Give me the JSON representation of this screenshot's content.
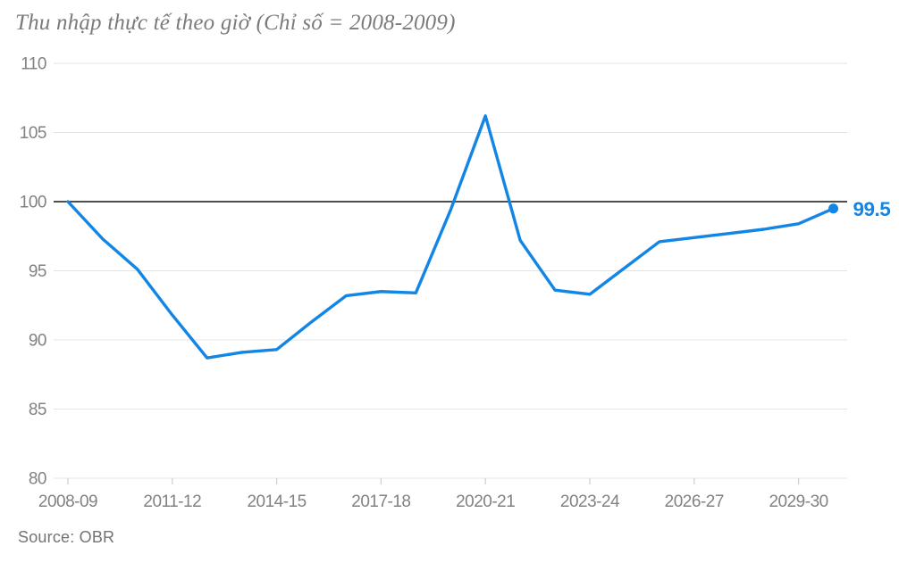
{
  "header": {
    "title": "Thu nhập thực tế theo giờ (Chỉ số = 2008-2009)"
  },
  "footer": {
    "source": "Source: OBR"
  },
  "chart_data": {
    "type": "line",
    "title": "Thu nhập thực tế theo giờ (Chỉ số = 2008-2009)",
    "source": "Source: OBR",
    "x": [
      "2008-09",
      "2009-10",
      "2010-11",
      "2011-12",
      "2012-13",
      "2013-14",
      "2014-15",
      "2015-16",
      "2016-17",
      "2017-18",
      "2018-19",
      "2019-20",
      "2020-21",
      "2021-22",
      "2022-23",
      "2023-24",
      "2024-25",
      "2025-26",
      "2026-27",
      "2027-28",
      "2028-29",
      "2029-30",
      "2030-31"
    ],
    "series": [
      {
        "name": "Thu nhập thực tế theo giờ (Chỉ số = 2008-2009)",
        "values": [
          100.0,
          97.3,
          95.1,
          91.8,
          88.7,
          89.1,
          89.3,
          91.3,
          93.2,
          93.5,
          93.4,
          99.4,
          106.2,
          97.2,
          93.6,
          93.3,
          95.2,
          97.1,
          97.4,
          97.7,
          98.0,
          98.4,
          99.5
        ]
      }
    ],
    "x_tick_labels": [
      "2008-09",
      "2011-12",
      "2014-15",
      "2017-18",
      "2020-21",
      "2023-24",
      "2026-27",
      "2029-30"
    ],
    "x_tick_step": 3,
    "y_ticks": [
      80,
      85,
      90,
      95,
      100,
      105,
      110
    ],
    "ylim": [
      80,
      110
    ],
    "baseline_value": 100,
    "end_label": "99.5",
    "grid": "horizontal",
    "legend": "none",
    "colors": {
      "line": "#1385e4",
      "grid": "#e4e4e4",
      "tick": "#cfcfcf",
      "baseline": "#141414",
      "axis_text": "#828282",
      "title_text": "#7b7b7e",
      "source_text": "#737373"
    }
  }
}
